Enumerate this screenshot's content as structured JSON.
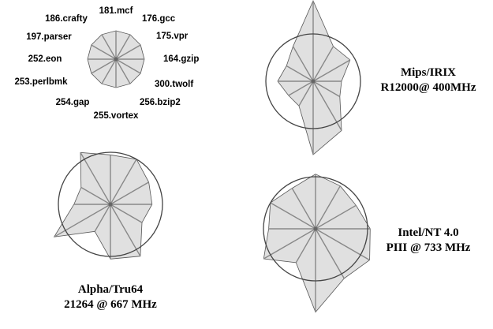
{
  "chart_data": [
    {
      "type": "radar",
      "role": "legend-key",
      "benchmarks": [
        "181.mcf",
        "176.gcc",
        "175.vpr",
        "164.gzip",
        "300.twolf",
        "256.bzip2",
        "255.vortex",
        "254.gap",
        "253.perlbmk",
        "252.eon",
        "197.parser",
        "186.crafty"
      ],
      "values": [
        1,
        1,
        1,
        1,
        1,
        1,
        1,
        1,
        1,
        1,
        1,
        1
      ],
      "reference": 1,
      "caption_lines": []
    },
    {
      "type": "radar",
      "caption_lines": [
        "Mips/IRIX",
        "R12000@ 400MHz"
      ],
      "reference": 1,
      "values": [
        1.7,
        0.85,
        0.9,
        0.6,
        0.65,
        1.2,
        1.55,
        0.6,
        0.6,
        0.75,
        0.65,
        0.85
      ]
    },
    {
      "type": "radar",
      "caption_lines": [
        "Alpha/Tru64",
        "21264 @ 667 MHz"
      ],
      "reference": 1,
      "values": [
        0.95,
        1.0,
        0.85,
        0.8,
        0.7,
        1.15,
        1.05,
        0.6,
        1.25,
        0.7,
        0.65,
        1.15
      ]
    },
    {
      "type": "radar",
      "caption_lines": [
        "Intel/NT 4.0",
        "PIII @ 733 MHz"
      ],
      "reference": 1,
      "values": [
        1.05,
        0.95,
        0.9,
        1.05,
        1.2,
        1.1,
        1.6,
        0.75,
        1.15,
        0.9,
        1.0,
        0.9
      ]
    }
  ]
}
